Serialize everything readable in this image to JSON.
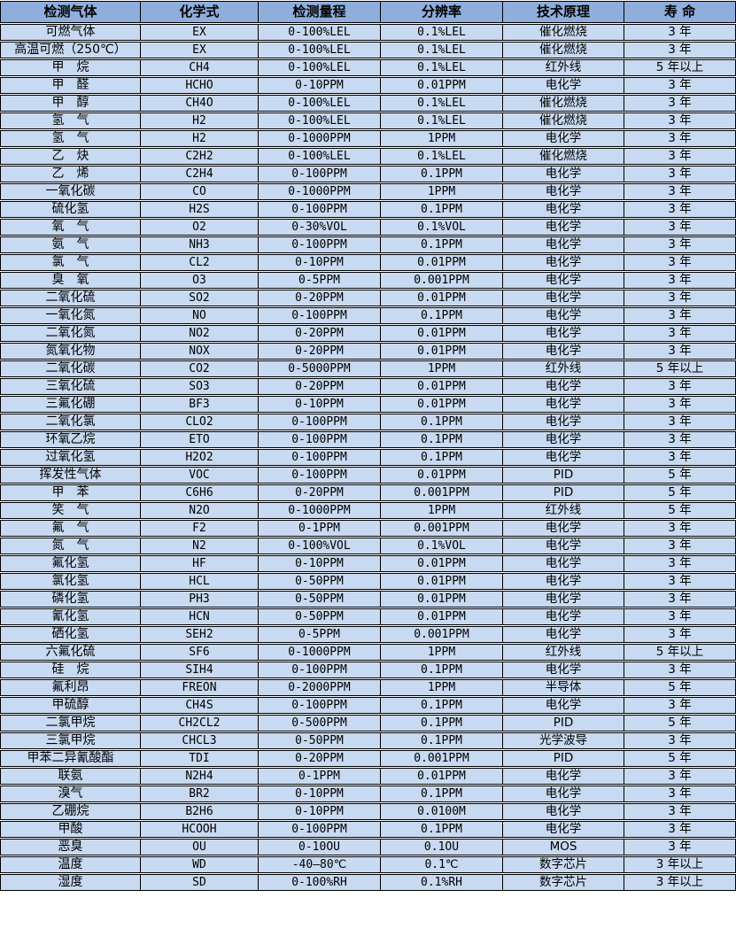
{
  "table": {
    "colors": {
      "header_bg": "#8FAEDC",
      "row_bg": "#C8DAF1",
      "border": "#000000",
      "text": "#000000"
    },
    "headers": [
      "检测气体",
      "化学式",
      "检测量程",
      "分辨率",
      "技术原理",
      "寿 命"
    ],
    "column_keys": [
      "gas-name",
      "chemical-formula",
      "detection-range",
      "resolution",
      "technology",
      "lifespan"
    ],
    "rows": [
      [
        "可燃气体",
        "EX",
        "0-100%LEL",
        "0.1%LEL",
        "催化燃烧",
        "3 年"
      ],
      [
        "高温可燃（250℃）",
        "EX",
        "0-100%LEL",
        "0.1%LEL",
        "催化燃烧",
        "3 年"
      ],
      [
        "甲　烷",
        "CH4",
        "0-100%LEL",
        "0.1%LEL",
        "红外线",
        "5 年以上"
      ],
      [
        "甲　醛",
        "HCHO",
        "0-10PPM",
        "0.01PPM",
        "电化学",
        "3 年"
      ],
      [
        "甲　醇",
        "CH4O",
        "0-100%LEL",
        "0.1%LEL",
        "催化燃烧",
        "3 年"
      ],
      [
        "氢　气",
        "H2",
        "0-100%LEL",
        "0.1%LEL",
        "催化燃烧",
        "3 年"
      ],
      [
        "氢　气",
        "H2",
        "0-1000PPM",
        "1PPM",
        "电化学",
        "3 年"
      ],
      [
        "乙　炔",
        "C2H2",
        "0-100%LEL",
        "0.1%LEL",
        "催化燃烧",
        "3 年"
      ],
      [
        "乙　烯",
        "C2H4",
        "0-100PPM",
        "0.1PPM",
        "电化学",
        "3 年"
      ],
      [
        "一氧化碳",
        "CO",
        "0-1000PPM",
        "1PPM",
        "电化学",
        "3 年"
      ],
      [
        "硫化氢",
        "H2S",
        "0-100PPM",
        "0.1PPM",
        "电化学",
        "3 年"
      ],
      [
        "氧　气",
        "O2",
        "0-30%VOL",
        "0.1%VOL",
        "电化学",
        "3 年"
      ],
      [
        "氨　气",
        "NH3",
        "0-100PPM",
        "0.1PPM",
        "电化学",
        "3 年"
      ],
      [
        "氯　气",
        "CL2",
        "0-10PPM",
        "0.01PPM",
        "电化学",
        "3 年"
      ],
      [
        "臭　氧",
        "O3",
        "0-5PPM",
        "0.001PPM",
        "电化学",
        "3 年"
      ],
      [
        "二氧化硫",
        "SO2",
        "0-20PPM",
        "0.01PPM",
        "电化学",
        "3 年"
      ],
      [
        "一氧化氮",
        "NO",
        "0-100PPM",
        "0.1PPM",
        "电化学",
        "3 年"
      ],
      [
        "二氧化氮",
        "NO2",
        "0-20PPM",
        "0.01PPM",
        "电化学",
        "3 年"
      ],
      [
        "氮氧化物",
        "NOX",
        "0-20PPM",
        "0.01PPM",
        "电化学",
        "3 年"
      ],
      [
        "二氧化碳",
        "CO2",
        "0-5000PPM",
        "1PPM",
        "红外线",
        "5 年以上"
      ],
      [
        "三氧化硫",
        "SO3",
        "0-20PPM",
        "0.01PPM",
        "电化学",
        "3 年"
      ],
      [
        "三氟化硼",
        "BF3",
        "0-10PPM",
        "0.01PPM",
        "电化学",
        "3 年"
      ],
      [
        "二氧化氯",
        "CLO2",
        "0-100PPM",
        "0.1PPM",
        "电化学",
        "3 年"
      ],
      [
        "环氧乙烷",
        "ETO",
        "0-100PPM",
        "0.1PPM",
        "电化学",
        "3 年"
      ],
      [
        "过氧化氢",
        "H2O2",
        "0-100PPM",
        "0.1PPM",
        "电化学",
        "3 年"
      ],
      [
        "挥发性气体",
        "VOC",
        "0-100PPM",
        "0.01PPM",
        "PID",
        "5 年"
      ],
      [
        "甲　苯",
        "C6H6",
        "0-20PPM",
        "0.001PPM",
        "PID",
        "5 年"
      ],
      [
        "笑　气",
        "N2O",
        "0-1000PPM",
        "1PPM",
        "红外线",
        "5 年"
      ],
      [
        "氟　气",
        "F2",
        "0-1PPM",
        "0.001PPM",
        "电化学",
        "3 年"
      ],
      [
        "氮　气",
        "N2",
        "0-100%VOL",
        "0.1%VOL",
        "电化学",
        "3 年"
      ],
      [
        "氟化氢",
        "HF",
        "0-10PPM",
        "0.01PPM",
        "电化学",
        "3 年"
      ],
      [
        "氯化氢",
        "HCL",
        "0-50PPM",
        "0.01PPM",
        "电化学",
        "3 年"
      ],
      [
        "磷化氢",
        "PH3",
        "0-50PPM",
        "0.01PPM",
        "电化学",
        "3 年"
      ],
      [
        "氰化氢",
        "HCN",
        "0-50PPM",
        "0.01PPM",
        "电化学",
        "3 年"
      ],
      [
        "硒化氢",
        "SEH2",
        "0-5PPM",
        "0.001PPM",
        "电化学",
        "3 年"
      ],
      [
        "六氟化硫",
        "SF6",
        "0-1000PPM",
        "1PPM",
        "红外线",
        "5 年以上"
      ],
      [
        "硅　烷",
        "SIH4",
        "0-100PPM",
        "0.1PPM",
        "电化学",
        "3 年"
      ],
      [
        "氟利昂",
        "FREON",
        "0-2000PPM",
        "1PPM",
        "半导体",
        "5 年"
      ],
      [
        "甲硫醇",
        "CH4S",
        "0-100PPM",
        "0.1PPM",
        "电化学",
        "3 年"
      ],
      [
        "二氯甲烷",
        "CH2CL2",
        "0-500PPM",
        "0.1PPM",
        "PID",
        "5 年"
      ],
      [
        "三氯甲烷",
        "CHCL3",
        "0-50PPM",
        "0.1PPM",
        "光学波导",
        "3 年"
      ],
      [
        "甲苯二异氰酸酯",
        "TDI",
        "0-20PPM",
        "0.001PPM",
        "PID",
        "5 年"
      ],
      [
        "联氨",
        "N2H4",
        "0-1PPM",
        "0.01PPM",
        "电化学",
        "3 年"
      ],
      [
        "溴气",
        "BR2",
        "0-10PPM",
        "0.1PPM",
        "电化学",
        "3 年"
      ],
      [
        "乙硼烷",
        "B2H6",
        "0-10PPM",
        "0.0100M",
        "电化学",
        "3 年"
      ],
      [
        "甲酸",
        "HCOOH",
        "0-100PPM",
        "0.1PPM",
        "电化学",
        "3 年"
      ],
      [
        "恶臭",
        "OU",
        "0-10OU",
        "0.1OU",
        "MOS",
        "3 年"
      ],
      [
        "温度",
        "WD",
        "-40—80℃",
        "0.1℃",
        "数字芯片",
        "3 年以上"
      ],
      [
        "湿度",
        "SD",
        "0-100%RH",
        "0.1%RH",
        "数字芯片",
        "3 年以上"
      ]
    ]
  }
}
